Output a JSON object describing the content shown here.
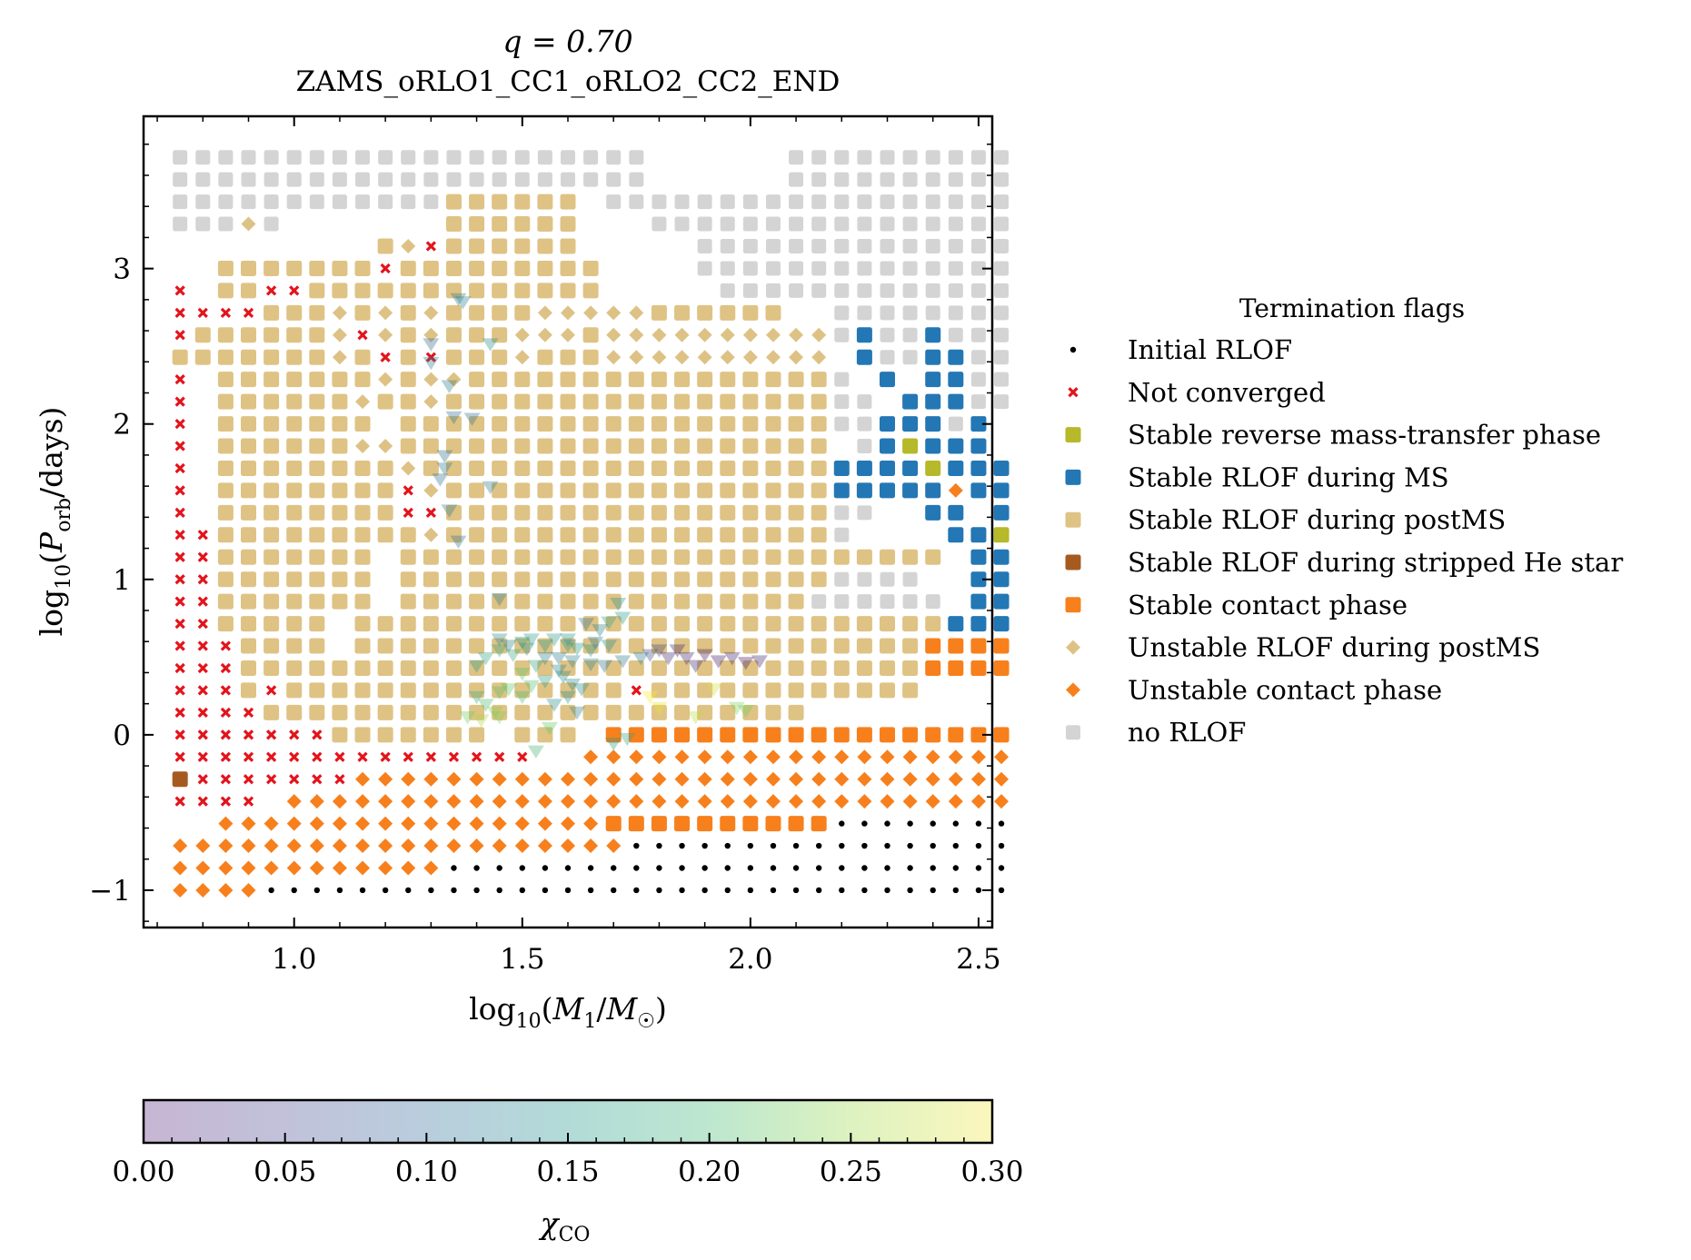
{
  "chart_data": {
    "type": "scatter",
    "title_line1": "q = 0.70",
    "title_line2": "ZAMS_oRLO1_CC1_oRLO2_CC2_END",
    "xlabel": "log10(M1/M☉)",
    "ylabel": "log10(Porb/days)",
    "xlim": [
      0.67,
      2.53
    ],
    "ylim": [
      -1.24,
      3.98
    ],
    "x_ticks": [
      1.0,
      1.5,
      2.0,
      2.5
    ],
    "x_tick_labels": [
      "1.0",
      "1.5",
      "2.0",
      "2.5"
    ],
    "y_ticks": [
      -1,
      0,
      1,
      2,
      3
    ],
    "y_tick_labels": [
      "−1",
      "0",
      "1",
      "2",
      "3"
    ],
    "grid": false,
    "legend": {
      "title": "Termination flags",
      "placement": "right",
      "entries": [
        {
          "key": "initial",
          "label": "Initial RLOF",
          "color": "#000000",
          "marker": "dot"
        },
        {
          "key": "notconv",
          "label": "Not converged",
          "color": "#e3141c",
          "marker": "x"
        },
        {
          "key": "reverse",
          "label": "Stable reverse mass-transfer phase",
          "color": "#b5b92a",
          "marker": "square"
        },
        {
          "key": "ms",
          "label": "Stable RLOF during MS",
          "color": "#2377b4",
          "marker": "square"
        },
        {
          "key": "postms",
          "label": "Stable RLOF during postMS",
          "color": "#dfc384",
          "marker": "square"
        },
        {
          "key": "hestar",
          "label": "Stable RLOF during stripped He star",
          "color": "#a55b20",
          "marker": "square"
        },
        {
          "key": "contact",
          "label": "Stable contact phase",
          "color": "#f7801c",
          "marker": "square"
        },
        {
          "key": "unstpost",
          "label": "Unstable RLOF during postMS",
          "color": "#dec285",
          "marker": "diamond"
        },
        {
          "key": "unstcontact",
          "label": "Unstable contact phase",
          "color": "#f7801c",
          "marker": "diamond"
        },
        {
          "key": "norlof",
          "label": "no RLOF",
          "color": "#d4d4d4",
          "marker": "square"
        }
      ]
    },
    "grid_x": {
      "start": 0.75,
      "step": 0.05,
      "count": 37
    },
    "grid_y": {
      "start": -1.0,
      "step": 0.1429,
      "count": 34
    },
    "cells": {
      "norlof": "36-A:0-36;32-35:0-20,27-36;31:0,1,2,3,4,5,6,7,8,9,10,11,19,20,21,22,23,24,25,26,27,28,29,30,31,32,33,34,35,36;30:0,1,2,4,21,22,23,24,25,26,27,28,29,30,31,32,33,34,35,36;28-29:23-36;27:24-36;26:29-36;25:29-36;24:30,31,32,33,35,36;23:29,33,34,35,36;22:29,30,34,35,36;21:29,30,31,32,33,34,35;20:30,31,35;19:35;18:28,29,30,33,34,35;17:28,29,30;16:28,29;15:27;14:29,30,31,32;13:28,29,30,31,32,33",
      "postms": "30-31:12-17;29:9-17;27-28:2-11,12-18;26:3-6,8,10,12,13,14,15,21,22,23,24,25,26;25:1-6,10,12,13,14,18;24:0-6,8,10,11,12,13,14,16,17,18;23:2-8,10,13,14,15,16,17,18,19,20,21,22,23,24,25,26,27,28;22:2-7,9,10,12,13,14,15,16,17,18,19,20,21,22,23,24,25,26,27,28;21:2-8,10,11,12,13,14,15,16,17,18,19,20,21,22,23,24,25,26,27,28;20:2-7,10,11,12,13,14,15,16,17,18,19,20,21,22,23,24,25,26,27,28;19:2-9,10,11,12,13,14,15,16,17,18,19,20,21,22,23,24,25,26,27,28;18:2-10,12,13,14,15,16,17,18,19,20,21,22,23,24,25,26,27,28;17:2-10,12,13,14,15,16,17,18,19,20,21,22,23,24,25,26,27,28;16:2-10,12,13,14,15,16,17,18,19,20,21,22,23,24,25,26,27,28;15:2-8,10,11,12,13,14,15,16,17,18,19,20,21,22,23,24,25,26,27,28,29,30,31,32,33;14:2-8,10,11,12,13,14,15,16,17,18,19,20,21,22,23,24,25,26,27,28;13:2-8,10,11,12,13,14,15,16,17,18,19,20,21,22,23,24,25,26,27;12:2-6,8,9,10,11,12,13,14,15,16,17,18,19,20,21,22,23,24,25,26,27,28,29,30,31,32,33;11:2-6,8,9,10,11,12,13,14,15,16,17,18,19,20,21,22,23,24,25,26,27,28,29,30,31,32;10:3,4,5,6,7,8,9,10,11,12,13,14,15,16,17,18,19,20,21,22,23,24,25,26,27,28,29,30,31,32;9:3,5,6,7,8,9,10,11,12,13,14,15,16,17,18,19,20,21,22,23,24,25,26,27,28,29,30,31,32;8:4,5,6,7,8,9,10,11,12,13,14,15,16,17,18,19,20,21,22,23,24,25,26,27;7:7,8,9,10,11,12,13,15,16,17,19,20,21,22,23,24,25,26,27",
      "unstpost": "29:10;26:2,7,9,11,16,17,18,19,20;25:7,8,9,11,15,16,17,19,20,21,22,23,24,25,26,27,28;24:7,9,15,19,20,21,22,23,24,25,26,27,28;23:9,11,12;22:8,11;20:8,9;19:10;18:11;17:11;16:11;30:3",
      "notconv": "27:0,4,5;26:0,1,2,3;25:0,8;24:9,11;23:0;22:0;21:0;20:0;19:0;18:0,10;17:0,10,11;16:0,1;15:0,1;14:0,1;13:0,1;12:0,1;11:0,1,2;10:0,1,2;9:0,1,2,4,20;8:0,1,2,3;7:0,1,2,3,4,5,6;6:0,1,2,3,4,5,6,7,8,9,10,11,12,13,14,15;5:0,1,2,3,4,5,6,7,8,9,10,11,12,13,14;4:0,1,2,3;29:11;28:9;25:0,0",
      "ms": "25:30,33;24:30,33,34;23:31,33,34;22:32,33,34;21:31,32,33,35;20:31,32,33,34,35;19:29,30,31,32,33,34,35,36;18:29,30,31,32,33,35,36;17:33,34,36;16:34,35,36;15:35,36;14:35,36;13:35,36;12:34,35,36",
      "reverse": "20:32;19:33;16:36",
      "hestar": "5:0",
      "contact": "11:33,34,35,36;10:33,34,35,36;7:19,20,21,22,23,24,25,26,27,28,29,30,31,32,33,34,35,36;6:19,20,21,22,23,24,25,26,27,28,29,30,31,32,33,34,35,36;5:19,20,21,22,23,24,25,26,27,28,29,30,31,32,33,34,35,36;4:16,17,18,19,20,21,22,23,24,25,26,27,28,29,30,31,32,33,34,35,36;3:9,10,11,12,13,14,15,16,17,18,19,20,21,22,23,24,25,26,27,28,29,30,31,32,33,34,35,36;2:9,10,11,12,13,14,15,16,17,18",
      "unstcontact": "6:18,19,20,21,22,23,24,25,26,27,28,29,30,31,32,33,34,35,36;5:8,9,10,11,12,13,14,15,16,17,18,19,20,21,22,23,24,25,26,27,28,29,30,31,32,33,34,35,36;4:5,6,7,8,9,10,11,12,13,14,15,16,17,18,19,20,21,22,23,24,25,26,27,28,29,30,31,32,33,34,35,36;3:2,3,4,5,6,7,8,9,10,11,12,13,14,15,16,17,18;2:0,1,2,3,4,5,6,7,8,9,10,11,12,13,14,15,16,17,18,19;1:0,1,2,3,4,5,6,7,8,9,10,11;0:0,1,2,3;18:34",
      "initial": "0:4-36;1:12-36;2:20-36;3:29-36"
    },
    "chi_co_points": [
      [
        1.36,
        2.81,
        0.12
      ],
      [
        1.37,
        2.79,
        0.13
      ],
      [
        1.43,
        2.52,
        0.14
      ],
      [
        1.3,
        2.52,
        0.1
      ],
      [
        1.3,
        2.4,
        0.12
      ],
      [
        1.34,
        2.25,
        0.12
      ],
      [
        1.35,
        2.05,
        0.11
      ],
      [
        1.39,
        2.04,
        0.11
      ],
      [
        1.33,
        1.8,
        0.11
      ],
      [
        1.32,
        1.65,
        0.11
      ],
      [
        1.33,
        1.72,
        0.12
      ],
      [
        1.43,
        1.6,
        0.12
      ],
      [
        1.34,
        1.45,
        0.12
      ],
      [
        1.36,
        1.25,
        0.11
      ],
      [
        1.45,
        0.88,
        0.12
      ],
      [
        1.4,
        0.45,
        0.16
      ],
      [
        1.42,
        0.5,
        0.17
      ],
      [
        1.45,
        0.55,
        0.17
      ],
      [
        1.5,
        0.6,
        0.16
      ],
      [
        1.52,
        0.62,
        0.16
      ],
      [
        1.55,
        0.58,
        0.15
      ],
      [
        1.57,
        0.62,
        0.16
      ],
      [
        1.6,
        0.58,
        0.15
      ],
      [
        1.62,
        0.56,
        0.16
      ],
      [
        1.65,
        0.55,
        0.15
      ],
      [
        1.69,
        0.58,
        0.14
      ],
      [
        1.72,
        0.76,
        0.16
      ],
      [
        1.71,
        0.85,
        0.15
      ],
      [
        1.69,
        0.73,
        0.17
      ],
      [
        1.4,
        0.25,
        0.18
      ],
      [
        1.42,
        0.2,
        0.2
      ],
      [
        1.45,
        0.28,
        0.21
      ],
      [
        1.47,
        0.3,
        0.22
      ],
      [
        1.5,
        0.25,
        0.2
      ],
      [
        1.52,
        0.32,
        0.21
      ],
      [
        1.55,
        0.35,
        0.16
      ],
      [
        1.57,
        0.2,
        0.14
      ],
      [
        1.6,
        0.25,
        0.14
      ],
      [
        1.62,
        0.15,
        0.13
      ],
      [
        1.63,
        0.3,
        0.14
      ],
      [
        1.58,
        0.42,
        0.13
      ],
      [
        1.55,
        0.5,
        0.13
      ],
      [
        1.45,
        0.62,
        0.14
      ],
      [
        1.48,
        0.52,
        0.18
      ],
      [
        1.5,
        0.4,
        0.22
      ],
      [
        1.53,
        0.45,
        0.17
      ],
      [
        1.58,
        0.5,
        0.12
      ],
      [
        1.61,
        0.48,
        0.13
      ],
      [
        1.65,
        0.46,
        0.13
      ],
      [
        1.68,
        0.45,
        0.11
      ],
      [
        1.72,
        0.48,
        0.12
      ],
      [
        1.76,
        0.5,
        0.12
      ],
      [
        1.78,
        0.52,
        0.07
      ],
      [
        1.8,
        0.55,
        0.06
      ],
      [
        1.82,
        0.5,
        0.04
      ],
      [
        1.84,
        0.55,
        0.03
      ],
      [
        1.86,
        0.5,
        0.03
      ],
      [
        1.88,
        0.45,
        0.04
      ],
      [
        1.9,
        0.52,
        0.02
      ],
      [
        1.93,
        0.48,
        0.02
      ],
      [
        1.96,
        0.5,
        0.03
      ],
      [
        1.99,
        0.47,
        0.02
      ],
      [
        2.02,
        0.48,
        0.03
      ],
      [
        1.73,
        -0.02,
        0.17
      ],
      [
        1.7,
        -0.05,
        0.16
      ],
      [
        1.53,
        -0.1,
        0.19
      ],
      [
        1.56,
        0.05,
        0.22
      ],
      [
        1.45,
        0.12,
        0.24
      ],
      [
        1.41,
        0.1,
        0.26
      ],
      [
        1.44,
        0.15,
        0.24
      ],
      [
        1.38,
        0.12,
        0.23
      ],
      [
        1.78,
        0.25,
        0.3
      ],
      [
        1.8,
        0.18,
        0.29
      ],
      [
        1.88,
        0.12,
        0.27
      ],
      [
        1.97,
        0.18,
        0.24
      ],
      [
        1.99,
        0.16,
        0.23
      ],
      [
        1.92,
        0.3,
        0.28
      ],
      [
        1.66,
        0.6,
        0.12
      ],
      [
        1.64,
        0.72,
        0.11
      ],
      [
        1.67,
        0.68,
        0.13
      ],
      [
        1.51,
        0.56,
        0.15
      ],
      [
        1.47,
        0.58,
        0.13
      ],
      [
        1.59,
        0.38,
        0.14
      ],
      [
        1.61,
        0.33,
        0.14
      ],
      [
        1.6,
        0.62,
        0.15
      ]
    ],
    "colorbar": {
      "label": "χCO",
      "range": [
        0.0,
        0.3
      ],
      "ticks": [
        "0.00",
        "0.05",
        "0.10",
        "0.15",
        "0.20",
        "0.25",
        "0.30"
      ],
      "colormap": "viridis",
      "alpha": 0.3
    }
  }
}
